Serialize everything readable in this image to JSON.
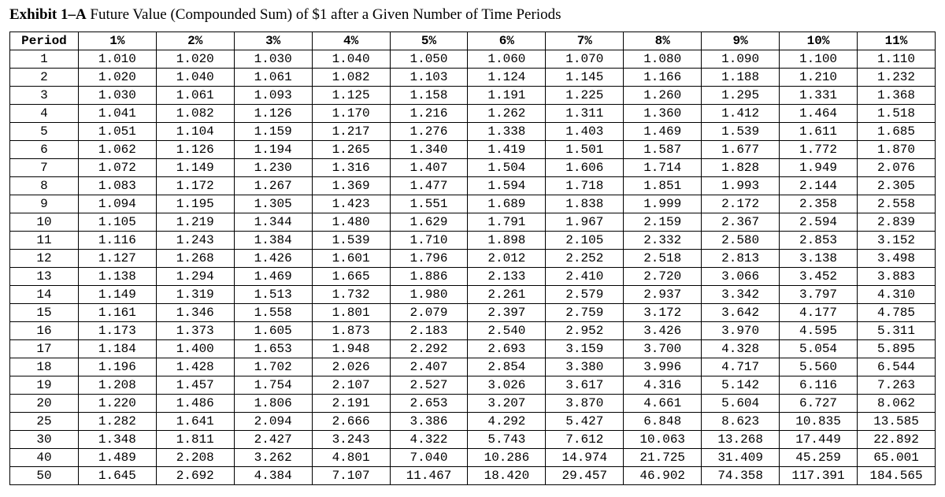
{
  "title_prefix": "Exhibit 1–A",
  "title_rest": " Future Value (Compounded Sum) of $1 after a Given Number of Time Periods",
  "table": {
    "type": "table",
    "period_header": "Period",
    "columns": [
      "1%",
      "2%",
      "3%",
      "4%",
      "5%",
      "6%",
      "7%",
      "8%",
      "9%",
      "10%",
      "11%"
    ],
    "rows": [
      {
        "period": "1",
        "v": [
          "1.010",
          "1.020",
          "1.030",
          "1.040",
          "1.050",
          "1.060",
          "1.070",
          "1.080",
          "1.090",
          "1.100",
          "1.110"
        ]
      },
      {
        "period": "2",
        "v": [
          "1.020",
          "1.040",
          "1.061",
          "1.082",
          "1.103",
          "1.124",
          "1.145",
          "1.166",
          "1.188",
          "1.210",
          "1.232"
        ]
      },
      {
        "period": "3",
        "v": [
          "1.030",
          "1.061",
          "1.093",
          "1.125",
          "1.158",
          "1.191",
          "1.225",
          "1.260",
          "1.295",
          "1.331",
          "1.368"
        ]
      },
      {
        "period": "4",
        "v": [
          "1.041",
          "1.082",
          "1.126",
          "1.170",
          "1.216",
          "1.262",
          "1.311",
          "1.360",
          "1.412",
          "1.464",
          "1.518"
        ]
      },
      {
        "period": "5",
        "v": [
          "1.051",
          "1.104",
          "1.159",
          "1.217",
          "1.276",
          "1.338",
          "1.403",
          "1.469",
          "1.539",
          "1.611",
          "1.685"
        ]
      },
      {
        "period": "6",
        "v": [
          "1.062",
          "1.126",
          "1.194",
          "1.265",
          "1.340",
          "1.419",
          "1.501",
          "1.587",
          "1.677",
          "1.772",
          "1.870"
        ]
      },
      {
        "period": "7",
        "v": [
          "1.072",
          "1.149",
          "1.230",
          "1.316",
          "1.407",
          "1.504",
          "1.606",
          "1.714",
          "1.828",
          "1.949",
          "2.076"
        ]
      },
      {
        "period": "8",
        "v": [
          "1.083",
          "1.172",
          "1.267",
          "1.369",
          "1.477",
          "1.594",
          "1.718",
          "1.851",
          "1.993",
          "2.144",
          "2.305"
        ]
      },
      {
        "period": "9",
        "v": [
          "1.094",
          "1.195",
          "1.305",
          "1.423",
          "1.551",
          "1.689",
          "1.838",
          "1.999",
          "2.172",
          "2.358",
          "2.558"
        ]
      },
      {
        "period": "10",
        "v": [
          "1.105",
          "1.219",
          "1.344",
          "1.480",
          "1.629",
          "1.791",
          "1.967",
          "2.159",
          "2.367",
          "2.594",
          "2.839"
        ]
      },
      {
        "period": "11",
        "v": [
          "1.116",
          "1.243",
          "1.384",
          "1.539",
          "1.710",
          "1.898",
          "2.105",
          "2.332",
          "2.580",
          "2.853",
          "3.152"
        ]
      },
      {
        "period": "12",
        "v": [
          "1.127",
          "1.268",
          "1.426",
          "1.601",
          "1.796",
          "2.012",
          "2.252",
          "2.518",
          "2.813",
          "3.138",
          "3.498"
        ]
      },
      {
        "period": "13",
        "v": [
          "1.138",
          "1.294",
          "1.469",
          "1.665",
          "1.886",
          "2.133",
          "2.410",
          "2.720",
          "3.066",
          "3.452",
          "3.883"
        ]
      },
      {
        "period": "14",
        "v": [
          "1.149",
          "1.319",
          "1.513",
          "1.732",
          "1.980",
          "2.261",
          "2.579",
          "2.937",
          "3.342",
          "3.797",
          "4.310"
        ]
      },
      {
        "period": "15",
        "v": [
          "1.161",
          "1.346",
          "1.558",
          "1.801",
          "2.079",
          "2.397",
          "2.759",
          "3.172",
          "3.642",
          "4.177",
          "4.785"
        ]
      },
      {
        "period": "16",
        "v": [
          "1.173",
          "1.373",
          "1.605",
          "1.873",
          "2.183",
          "2.540",
          "2.952",
          "3.426",
          "3.970",
          "4.595",
          "5.311"
        ]
      },
      {
        "period": "17",
        "v": [
          "1.184",
          "1.400",
          "1.653",
          "1.948",
          "2.292",
          "2.693",
          "3.159",
          "3.700",
          "4.328",
          "5.054",
          "5.895"
        ]
      },
      {
        "period": "18",
        "v": [
          "1.196",
          "1.428",
          "1.702",
          "2.026",
          "2.407",
          "2.854",
          "3.380",
          "3.996",
          "4.717",
          "5.560",
          "6.544"
        ]
      },
      {
        "period": "19",
        "v": [
          "1.208",
          "1.457",
          "1.754",
          "2.107",
          "2.527",
          "3.026",
          "3.617",
          "4.316",
          "5.142",
          "6.116",
          "7.263"
        ]
      },
      {
        "period": "20",
        "v": [
          "1.220",
          "1.486",
          "1.806",
          "2.191",
          "2.653",
          "3.207",
          "3.870",
          "4.661",
          "5.604",
          "6.727",
          "8.062"
        ]
      },
      {
        "period": "25",
        "v": [
          "1.282",
          "1.641",
          "2.094",
          "2.666",
          "3.386",
          "4.292",
          "5.427",
          "6.848",
          "8.623",
          "10.835",
          "13.585"
        ]
      },
      {
        "period": "30",
        "v": [
          "1.348",
          "1.811",
          "2.427",
          "3.243",
          "4.322",
          "5.743",
          "7.612",
          "10.063",
          "13.268",
          "17.449",
          "22.892"
        ]
      },
      {
        "period": "40",
        "v": [
          "1.489",
          "2.208",
          "3.262",
          "4.801",
          "7.040",
          "10.286",
          "14.974",
          "21.725",
          "31.409",
          "45.259",
          "65.001"
        ]
      },
      {
        "period": "50",
        "v": [
          "1.645",
          "2.692",
          "4.384",
          "7.107",
          "11.467",
          "18.420",
          "29.457",
          "46.902",
          "74.358",
          "117.391",
          "184.565"
        ]
      }
    ],
    "colors": {
      "background": "#ffffff",
      "text": "#000000",
      "border": "#000000"
    },
    "fonts": {
      "title_family": "Times New Roman",
      "title_size_pt": 14,
      "cell_family": "Courier New",
      "cell_size_pt": 12
    }
  }
}
